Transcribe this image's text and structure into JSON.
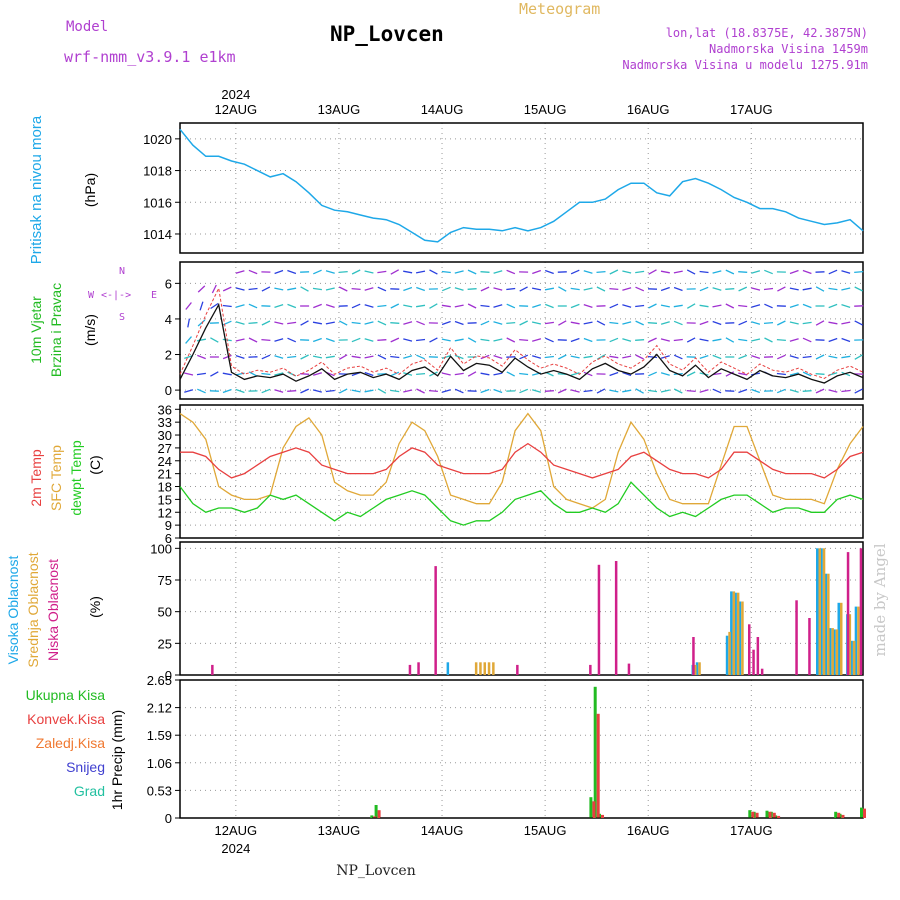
{
  "header": {
    "model_label": "Model",
    "model_name": "wrf-nmm_v3.9.1 e1km",
    "station_title": "NP_Lovcen",
    "meteogram_label": "Meteogram",
    "lonlat": "lon,lat (18.8375E, 42.3875N)",
    "altitude": "Nadmorska Visina 1459m",
    "model_altitude": "Nadmorska Visina u modelu 1275.91m",
    "year": "2024",
    "footer_title": "NP_Lovcen",
    "credit": "made by Angel"
  },
  "colors": {
    "pressure": "#1ea8e8",
    "wind_label": "#22bb22",
    "wind_dir": "#b040d0",
    "temp2m": "#e84040",
    "sfc_temp": "#e0a838",
    "dewpt": "#22cc22",
    "high_cloud": "#1ea8e8",
    "mid_cloud": "#e0a838",
    "low_cloud": "#d0208a",
    "precip_total": "#22bb22",
    "precip_conv": "#e84040",
    "precip_frz": "#f07830",
    "snow": "#4040d0",
    "graupel": "#22c0a0",
    "credit": "#c8c8c8"
  },
  "chart_data": [
    {
      "type": "line",
      "panel": "pressure",
      "ylabel_lines": [
        "Pritisak na nivou mora"
      ],
      "unit": "(hPa)",
      "x_ticks": [
        "12AUG",
        "13AUG",
        "14AUG",
        "15AUG",
        "16AUG",
        "17AUG"
      ],
      "x_range_hours": [
        -13,
        146
      ],
      "y_ticks": [
        1014,
        1016,
        1018,
        1020
      ],
      "ylim": [
        1012.8,
        1021
      ],
      "series": [
        {
          "x": [
            -13,
            -10,
            -7,
            -4,
            -1,
            2,
            5,
            8,
            11,
            14,
            17,
            20,
            23,
            26,
            29,
            32,
            35,
            38,
            41,
            44,
            47,
            50,
            53,
            56,
            59,
            62,
            65,
            68,
            71,
            74,
            77,
            80,
            83,
            86,
            89,
            92,
            95,
            98,
            101,
            104,
            107,
            110,
            113,
            116,
            119,
            122,
            125,
            128,
            131,
            134,
            137,
            140,
            143,
            146
          ],
          "values": [
            1020.6,
            1019.6,
            1018.9,
            1018.9,
            1018.6,
            1018.4,
            1018.0,
            1017.6,
            1017.8,
            1017.3,
            1016.6,
            1015.8,
            1015.5,
            1015.4,
            1015.2,
            1015.0,
            1014.9,
            1014.6,
            1014.1,
            1013.6,
            1013.5,
            1014.1,
            1014.4,
            1014.3,
            1014.3,
            1014.2,
            1014.4,
            1014.2,
            1014.4,
            1014.8,
            1015.4,
            1016.0,
            1016.0,
            1016.2,
            1016.8,
            1017.2,
            1017.2,
            1016.6,
            1016.4,
            1017.3,
            1017.5,
            1017.2,
            1016.8,
            1016.3,
            1016.0,
            1015.6,
            1015.6,
            1015.4,
            1015.0,
            1014.8,
            1014.6,
            1014.7,
            1014.9,
            1014.2
          ]
        }
      ]
    },
    {
      "type": "line",
      "panel": "wind",
      "ylabel_lines": [
        "10m Vjetar",
        "Brzina i Pravac"
      ],
      "unit": "(m/s)",
      "compass": [
        "N",
        "W",
        "E",
        "S",
        "<-|->"
      ],
      "y_ticks": [
        0,
        2,
        4,
        6
      ],
      "ylim": [
        -0.5,
        7.2
      ],
      "series": [
        {
          "name": "speed",
          "x": [
            -13,
            -10,
            -7,
            -4,
            -1,
            2,
            5,
            8,
            11,
            14,
            17,
            20,
            23,
            26,
            29,
            32,
            35,
            38,
            41,
            44,
            47,
            50,
            53,
            56,
            59,
            62,
            65,
            68,
            71,
            74,
            77,
            80,
            83,
            86,
            89,
            92,
            95,
            98,
            101,
            104,
            107,
            110,
            113,
            116,
            119,
            122,
            125,
            128,
            131,
            134,
            137,
            140,
            143,
            146
          ],
          "values": [
            0.6,
            2.0,
            3.5,
            4.8,
            1.0,
            0.6,
            0.8,
            0.7,
            0.9,
            0.5,
            0.8,
            1.2,
            0.6,
            0.9,
            1.0,
            0.7,
            0.9,
            0.6,
            1.1,
            1.3,
            0.8,
            1.9,
            1.1,
            1.5,
            1.4,
            1.0,
            1.8,
            1.3,
            0.9,
            1.1,
            0.9,
            0.6,
            1.2,
            1.5,
            1.1,
            0.9,
            1.3,
            2.0,
            1.1,
            0.8,
            1.4,
            0.7,
            1.2,
            0.9,
            0.6,
            1.1,
            0.8,
            0.7,
            0.9,
            0.6,
            0.4,
            0.8,
            1.0,
            0.7
          ]
        }
      ]
    },
    {
      "type": "line",
      "panel": "temperature",
      "ylabel_lines": [
        "2m Temp",
        "SFC Temp",
        "dewpt Temp"
      ],
      "unit": "(C)",
      "y_ticks": [
        6,
        9,
        12,
        15,
        18,
        21,
        24,
        27,
        30,
        33,
        36
      ],
      "ylim": [
        6,
        37
      ],
      "series": [
        {
          "name": "2m Temp",
          "x": [
            -13,
            -10,
            -7,
            -4,
            -1,
            2,
            5,
            8,
            11,
            14,
            17,
            20,
            23,
            26,
            29,
            32,
            35,
            38,
            41,
            44,
            47,
            50,
            53,
            56,
            59,
            62,
            65,
            68,
            71,
            74,
            77,
            80,
            83,
            86,
            89,
            92,
            95,
            98,
            101,
            104,
            107,
            110,
            113,
            116,
            119,
            122,
            125,
            128,
            131,
            134,
            137,
            140,
            143,
            146
          ],
          "values": [
            26,
            26,
            25,
            22,
            20,
            21,
            23,
            25,
            26,
            27,
            26,
            23,
            22,
            21,
            21,
            21,
            22,
            25,
            27,
            26,
            23,
            22,
            21,
            21,
            21,
            22,
            26,
            28,
            26,
            23,
            22,
            21,
            20,
            21,
            22,
            25,
            26,
            24,
            22,
            21,
            21,
            20,
            22,
            26,
            26,
            24,
            22,
            21,
            21,
            21,
            20,
            22,
            25,
            26
          ]
        },
        {
          "name": "SFC Temp",
          "x": [
            -13,
            -10,
            -7,
            -4,
            -1,
            2,
            5,
            8,
            11,
            14,
            17,
            20,
            23,
            26,
            29,
            32,
            35,
            38,
            41,
            44,
            47,
            50,
            53,
            56,
            59,
            62,
            65,
            68,
            71,
            74,
            77,
            80,
            83,
            86,
            89,
            92,
            95,
            98,
            101,
            104,
            107,
            110,
            113,
            116,
            119,
            122,
            125,
            128,
            131,
            134,
            137,
            140,
            143,
            146
          ],
          "values": [
            35,
            33,
            29,
            18,
            16,
            15,
            15,
            16,
            27,
            32,
            34,
            30,
            19,
            17,
            16,
            16,
            19,
            28,
            33,
            31,
            25,
            16,
            15,
            14,
            14,
            19,
            31,
            35,
            31,
            18,
            15,
            14,
            13,
            15,
            26,
            33,
            29,
            21,
            15,
            14,
            14,
            14,
            23,
            32,
            32,
            24,
            16,
            15,
            15,
            15,
            14,
            22,
            28,
            32
          ]
        },
        {
          "name": "dewpt Temp",
          "x": [
            -13,
            -10,
            -7,
            -4,
            -1,
            2,
            5,
            8,
            11,
            14,
            17,
            20,
            23,
            26,
            29,
            32,
            35,
            38,
            41,
            44,
            47,
            50,
            53,
            56,
            59,
            62,
            65,
            68,
            71,
            74,
            77,
            80,
            83,
            86,
            89,
            92,
            95,
            98,
            101,
            104,
            107,
            110,
            113,
            116,
            119,
            122,
            125,
            128,
            131,
            134,
            137,
            140,
            143,
            146
          ],
          "values": [
            18,
            14,
            12,
            13,
            13,
            12,
            13,
            16,
            15,
            16,
            14,
            12,
            10,
            12,
            11,
            13,
            15,
            16,
            17,
            16,
            13,
            10,
            9,
            10,
            10,
            12,
            15,
            16,
            17,
            14,
            12,
            12,
            13,
            12,
            14,
            19,
            16,
            13,
            11,
            12,
            11,
            13,
            15,
            16,
            16,
            14,
            12,
            13,
            13,
            12,
            12,
            15,
            16,
            15
          ]
        }
      ]
    },
    {
      "type": "bar",
      "panel": "cloud",
      "ylabel_lines": [
        "Visoka Oblacnost",
        "Srednja Oblacnost",
        "Niska Oblacnost"
      ],
      "unit": "(%)",
      "y_ticks": [
        0,
        25,
        50,
        75,
        100
      ],
      "ylim": [
        0,
        105
      ],
      "series": [
        {
          "name": "Visoka Oblacnost",
          "x": [
            50,
            107,
            108,
            115,
            116,
            117,
            118,
            136,
            137,
            138,
            139,
            140,
            141,
            143,
            144,
            145
          ],
          "values": [
            10,
            8,
            10,
            31,
            66,
            65,
            58,
            100,
            100,
            80,
            37,
            36,
            57,
            48,
            27,
            54
          ]
        },
        {
          "name": "Srednja Oblacnost",
          "x": [
            56,
            57,
            58,
            59,
            60,
            107,
            108,
            115,
            116,
            117,
            118,
            136,
            137,
            138,
            139,
            140,
            141,
            143,
            144,
            145
          ],
          "values": [
            10,
            10,
            10,
            10,
            10,
            8,
            10,
            34,
            66,
            65,
            58,
            100,
            100,
            80,
            37,
            36,
            57,
            48,
            27,
            54
          ]
        },
        {
          "name": "Niska Oblacnost",
          "x": [
            -6,
            40,
            42,
            46,
            65,
            82,
            84,
            88,
            91,
            106,
            119,
            120,
            121,
            122,
            130,
            133,
            142,
            145
          ],
          "values": [
            8,
            8,
            10,
            86,
            8,
            8,
            87,
            90,
            9,
            30,
            40,
            20,
            30,
            5,
            59,
            45,
            97,
            100
          ]
        }
      ]
    },
    {
      "type": "bar",
      "panel": "precip",
      "ylabel_lines": [
        "1hr Precip (mm)"
      ],
      "legend": [
        "Ukupna Kisa",
        "Konvek.Kisa",
        "Zaledj.Kisa",
        "Snijeg",
        "Grad"
      ],
      "y_ticks": [
        0,
        0.53,
        1.06,
        1.59,
        2.12,
        2.65
      ],
      "ylim": [
        0,
        2.65
      ],
      "series": [
        {
          "name": "Ukupna Kisa",
          "x": [
            32,
            33,
            83,
            84,
            85,
            120,
            121,
            124,
            125,
            126,
            140,
            141,
            146
          ],
          "values": [
            0.05,
            0.25,
            0.4,
            2.52,
            0.08,
            0.15,
            0.12,
            0.14,
            0.12,
            0.05,
            0.12,
            0.08,
            0.2
          ]
        },
        {
          "name": "Konvek.Kisa",
          "x": [
            32,
            33,
            83,
            84,
            85,
            120,
            121,
            124,
            125,
            126,
            140,
            141,
            146
          ],
          "values": [
            0.03,
            0.15,
            0.32,
            2.0,
            0.06,
            0.12,
            0.1,
            0.12,
            0.1,
            0.04,
            0.1,
            0.06,
            0.18
          ]
        }
      ]
    }
  ]
}
